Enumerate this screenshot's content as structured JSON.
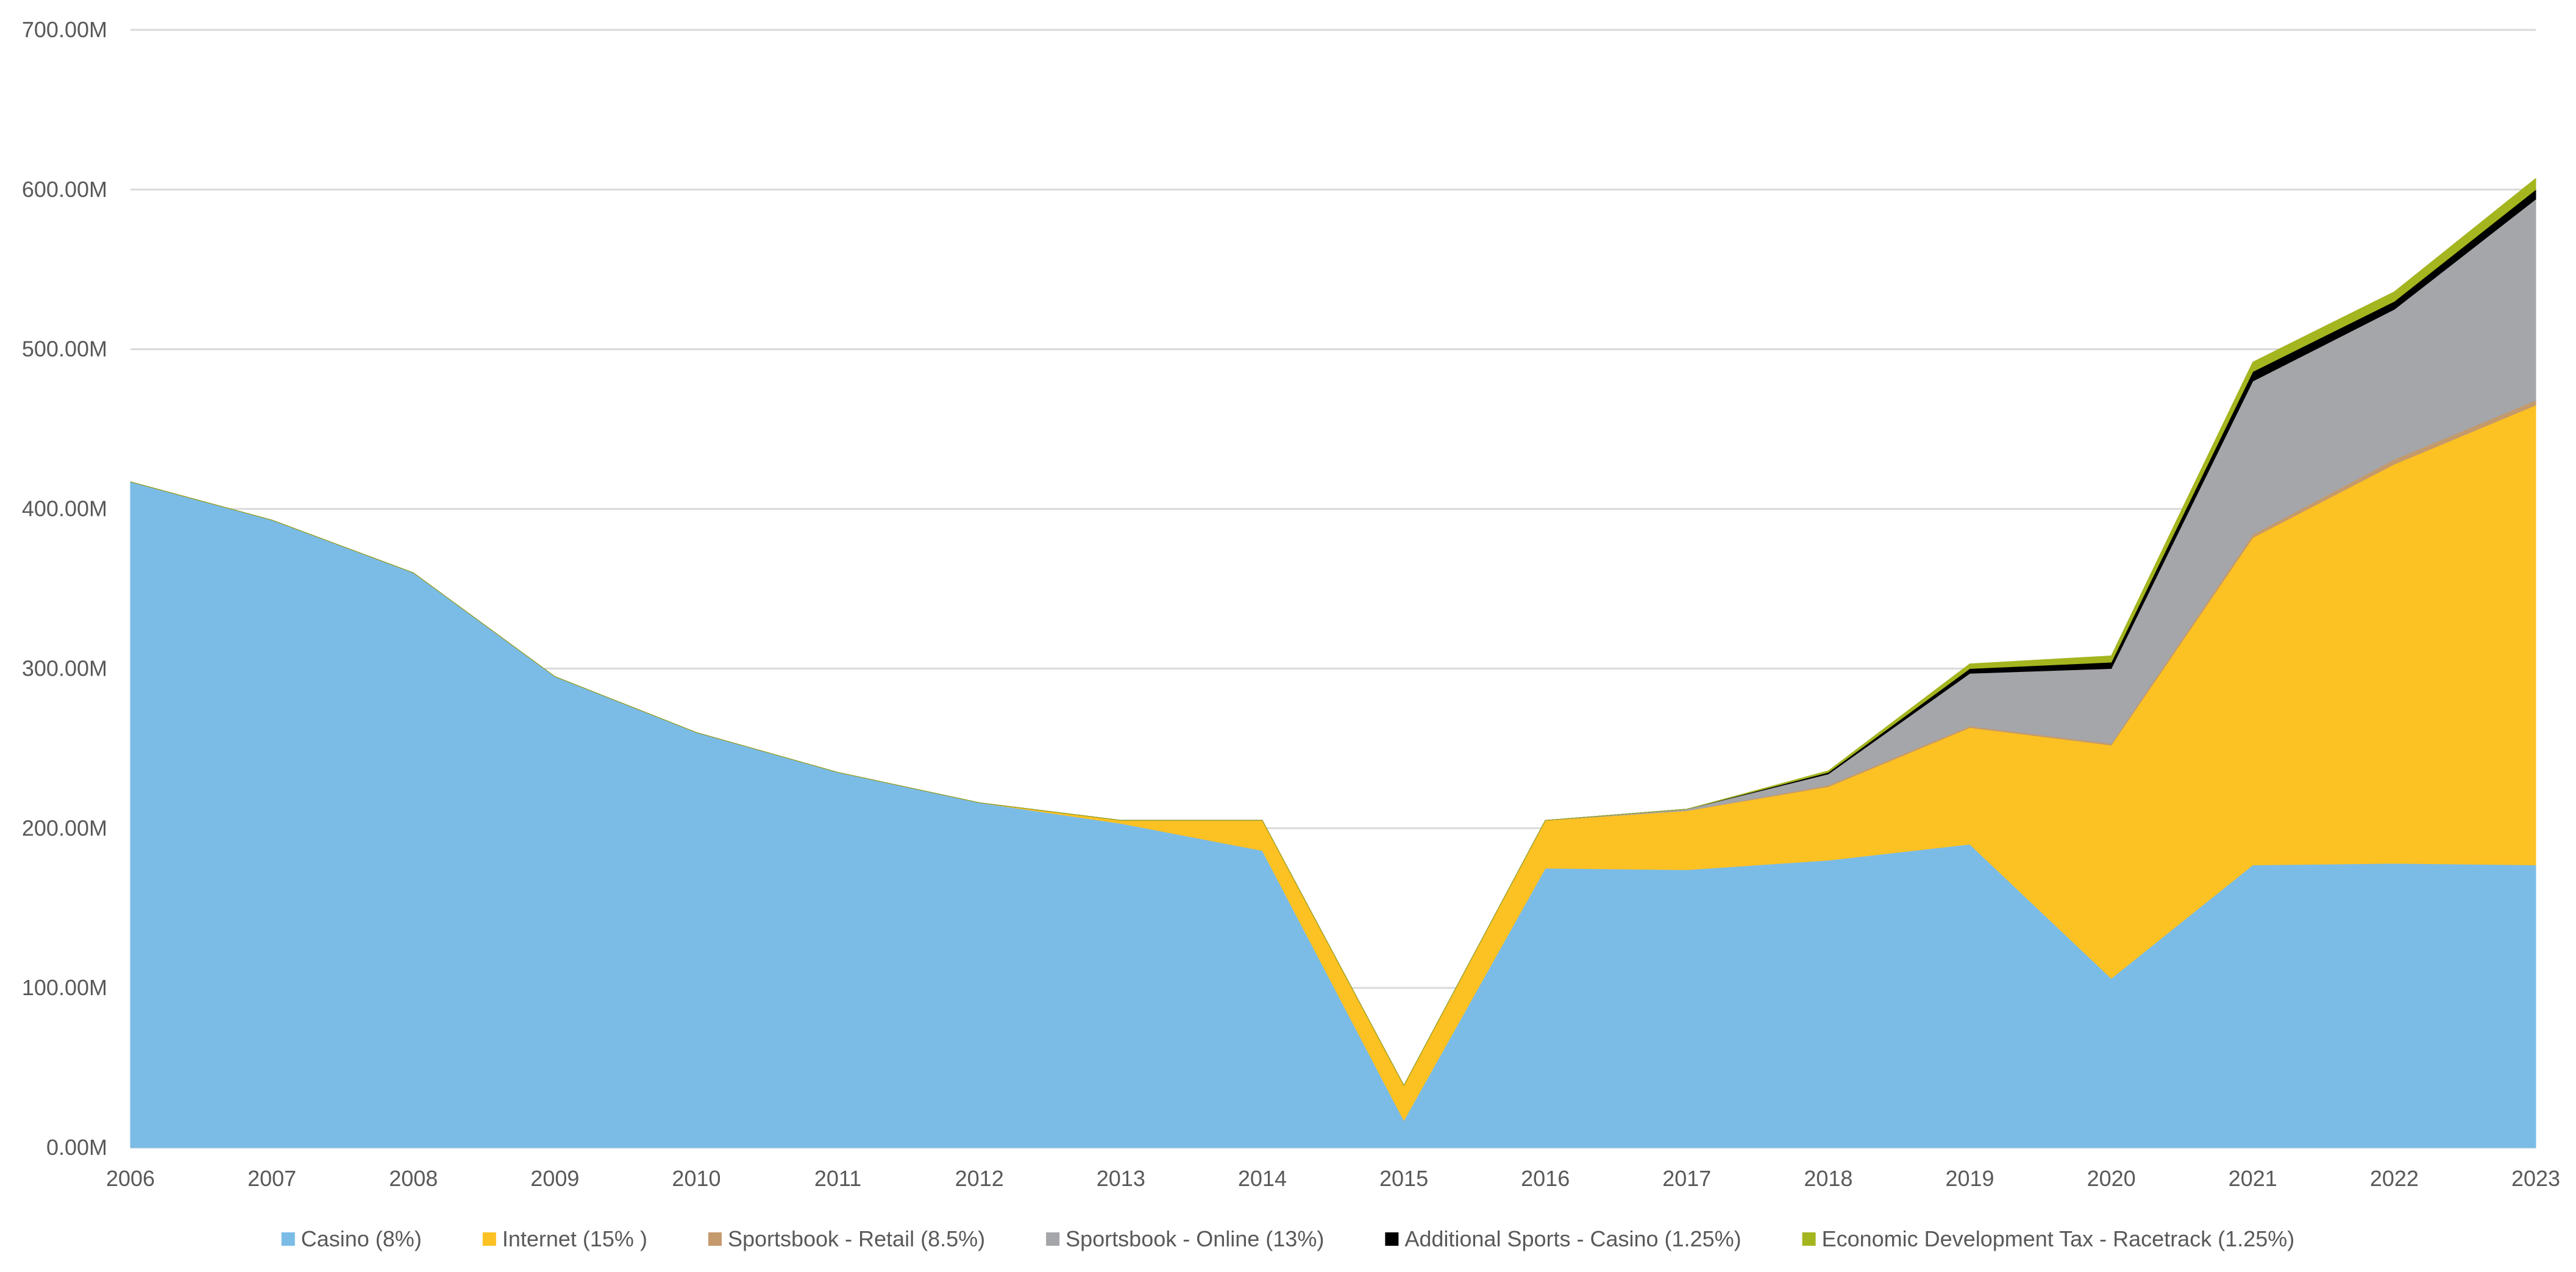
{
  "chart_data": {
    "type": "area",
    "stacked": true,
    "title": "",
    "xlabel": "",
    "ylabel": "",
    "x": [
      "2006",
      "2007",
      "2008",
      "2009",
      "2010",
      "2011",
      "2012",
      "2013",
      "2014",
      "2015",
      "2016",
      "2017",
      "2018",
      "2019",
      "2020",
      "2021",
      "2022",
      "2023"
    ],
    "y_ticks": [
      "0.00M",
      "100.00M",
      "200.00M",
      "300.00M",
      "400.00M",
      "500.00M",
      "600.00M",
      "700.00M"
    ],
    "ylim": [
      0,
      700
    ],
    "y_unit": "M",
    "grid": true,
    "legend_position": "bottom",
    "series": [
      {
        "name": "Casino (8%)",
        "color": "#7BBCE7",
        "values": [
          417,
          393,
          360,
          295,
          260,
          235,
          216,
          203,
          186,
          17,
          175,
          174,
          180,
          190,
          106,
          177,
          178,
          177
        ]
      },
      {
        "name": "Internet (15% )",
        "color": "#FCC123",
        "values": [
          0,
          0,
          0,
          0,
          0,
          0,
          0,
          2,
          19,
          22,
          30,
          37,
          46,
          73,
          146,
          205,
          250,
          288
        ]
      },
      {
        "name": "Sportsbook - Retail (8.5%)",
        "color": "#C49A6C",
        "values": [
          0,
          0,
          0,
          0,
          0,
          0,
          0,
          0,
          0,
          0,
          0,
          0,
          1,
          1,
          1,
          2,
          3,
          3
        ]
      },
      {
        "name": "Sportsbook - Online (13%)",
        "color": "#A5A6A9",
        "values": [
          0,
          0,
          0,
          0,
          0,
          0,
          0,
          0,
          0,
          0,
          0,
          1,
          7,
          33,
          47,
          96,
          94,
          126
        ]
      },
      {
        "name": "Additional Sports - Casino (1.25%)",
        "color": "#000000",
        "values": [
          0,
          0,
          0,
          0,
          0,
          0,
          0,
          0,
          0,
          0,
          0,
          0,
          1,
          3,
          4,
          6,
          5,
          6
        ]
      },
      {
        "name": "Economic Development Tax - Racetrack (1.25%)",
        "color": "#A4B51F",
        "values": [
          0,
          0,
          0,
          0,
          0,
          0,
          0,
          0,
          0,
          0,
          0,
          0,
          1,
          3,
          4,
          6,
          6,
          7
        ]
      }
    ]
  }
}
